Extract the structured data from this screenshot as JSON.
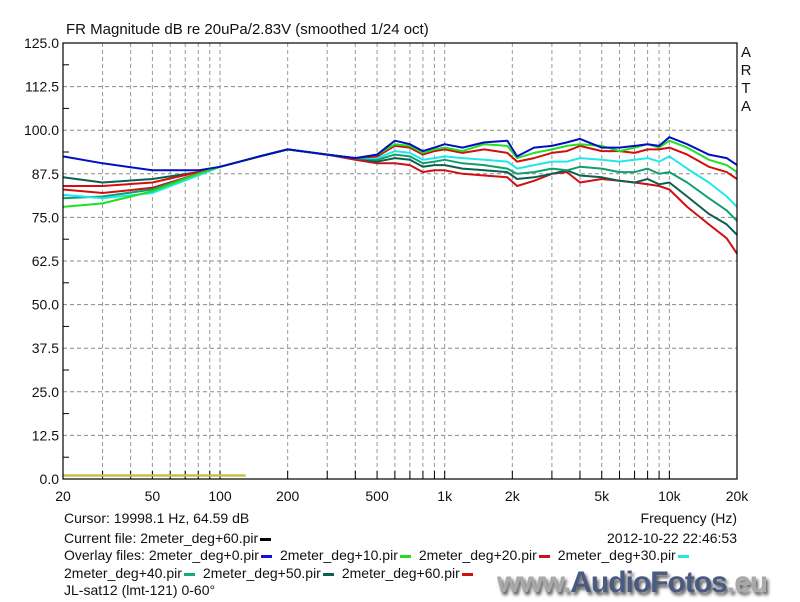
{
  "chart_data": {
    "type": "line",
    "title": "FR Magnitude dB re 20uPa/2.83V (smoothed 1/24 oct)",
    "xlabel": "Frequency (Hz)",
    "ylabel": "",
    "xscale": "log",
    "xlim": [
      20,
      20000
    ],
    "ylim": [
      0,
      125
    ],
    "grid": true,
    "yticks": [
      "0.0",
      "12.5",
      "25.0",
      "37.5",
      "50.0",
      "62.5",
      "75.0",
      "87.5",
      "100.0",
      "112.5",
      "125.0"
    ],
    "xticks": [
      {
        "value": 20,
        "label": "20"
      },
      {
        "value": 50,
        "label": "50"
      },
      {
        "value": 100,
        "label": "100"
      },
      {
        "value": 200,
        "label": "200"
      },
      {
        "value": 500,
        "label": "500"
      },
      {
        "value": 1000,
        "label": "1k"
      },
      {
        "value": 2000,
        "label": "2k"
      },
      {
        "value": 5000,
        "label": "5k"
      },
      {
        "value": 10000,
        "label": "10k"
      },
      {
        "value": 20000,
        "label": "20k"
      }
    ],
    "x": [
      20,
      30,
      50,
      80,
      100,
      150,
      200,
      300,
      400,
      500,
      600,
      700,
      800,
      900,
      1000,
      1200,
      1500,
      1900,
      2100,
      2500,
      3000,
      3500,
      4000,
      5000,
      6000,
      7000,
      8000,
      9000,
      10000,
      12000,
      15000,
      18000,
      20000
    ],
    "series": [
      {
        "name": "2meter_deg+0.pir",
        "color": "#0010c0",
        "values": [
          92.5,
          90.5,
          88.5,
          88.5,
          89.5,
          92.5,
          94.5,
          93,
          92,
          93,
          97,
          96,
          94,
          95,
          96,
          95,
          96.5,
          97,
          92.5,
          95,
          95.5,
          96.5,
          97.5,
          95,
          95,
          95.5,
          96,
          95.5,
          98,
          96,
          93,
          92,
          90
        ]
      },
      {
        "name": "2meter_deg+10.pir",
        "color": "#20e020",
        "values": [
          78,
          79,
          82.5,
          87.5,
          89.5,
          92.5,
          94.5,
          93,
          92,
          93,
          96,
          95.5,
          93.5,
          94.5,
          95,
          94,
          96,
          95.5,
          92,
          93.5,
          94.5,
          95.5,
          96,
          95.5,
          94,
          95,
          96,
          95,
          97,
          95,
          91.5,
          90,
          88
        ]
      },
      {
        "name": "2meter_deg+20.pir",
        "color": "#d01010",
        "values": [
          84,
          84,
          85,
          88,
          89.5,
          92.5,
          94.5,
          93,
          92,
          92.5,
          95.5,
          95,
          93,
          94,
          94.5,
          93.5,
          94.5,
          93.5,
          91,
          92,
          93.5,
          94,
          95.5,
          94,
          94,
          93.5,
          94.5,
          94.5,
          95,
          93,
          89.5,
          88,
          86
        ]
      },
      {
        "name": "2meter_deg+30.pir",
        "color": "#20e8e8",
        "values": [
          81.5,
          80.5,
          82,
          87,
          89.5,
          92.5,
          94.5,
          93,
          92,
          92,
          94,
          93.5,
          91.5,
          92,
          92.5,
          92,
          91.5,
          91,
          89,
          90,
          91,
          91,
          92,
          91.5,
          91,
          91.5,
          92,
          91,
          92.5,
          89,
          85,
          81,
          78
        ]
      },
      {
        "name": "2meter_deg+40.pir",
        "color": "#10a070",
        "values": [
          80.5,
          81,
          83,
          87.5,
          89.5,
          92.5,
          94.5,
          93,
          92,
          91.5,
          93,
          92.5,
          90.5,
          91,
          91.5,
          90.5,
          90,
          89,
          87.5,
          88,
          89,
          88.5,
          89.5,
          89,
          88,
          88,
          89,
          87.5,
          88,
          85,
          80.5,
          77,
          74
        ]
      },
      {
        "name": "2meter_deg+50.pir",
        "color": "#0a6050",
        "values": [
          86.5,
          85,
          86,
          88,
          89.5,
          92.5,
          94.5,
          93,
          92,
          91,
          92,
          91.5,
          89.5,
          90,
          90,
          89,
          88.5,
          88,
          86,
          86.5,
          87.5,
          88.5,
          87,
          86.5,
          85.5,
          85,
          86,
          84.5,
          85,
          81,
          76,
          73,
          70
        ]
      },
      {
        "name": "2meter_deg+60.pir",
        "color": "#d01010",
        "values": [
          83,
          82,
          83.5,
          87.5,
          89.5,
          92.5,
          94.5,
          93,
          91.5,
          90.5,
          90.5,
          90,
          88,
          88.5,
          88.5,
          87.5,
          87,
          86.5,
          84,
          85.5,
          87.5,
          88,
          85,
          86,
          85.5,
          85,
          84.5,
          84,
          83,
          78,
          73,
          69,
          64.6
        ]
      }
    ],
    "reference_line": {
      "color": "#c8c040",
      "from_hz": 20,
      "to_hz": 130,
      "value": 1
    }
  },
  "arta_label": [
    "A",
    "R",
    "T",
    "A"
  ],
  "info": {
    "cursor": "Cursor: 19998.1 Hz, 64.59 dB",
    "current_file_prefix": "Current file: ",
    "current_file": "2meter_deg+60.pir",
    "current_file_color": "#000000",
    "overlay_prefix": "Overlay files: ",
    "overlays_line1": [
      {
        "name": "2meter_deg+0.pir",
        "color": "#1010e0"
      },
      {
        "name": "2meter_deg+10.pir",
        "color": "#20e020"
      },
      {
        "name": "2meter_deg+20.pir",
        "color": "#d01010"
      },
      {
        "name": "2meter_deg+30.pir",
        "color": "#20e8e8"
      }
    ],
    "overlays_line2": [
      {
        "name": "2meter_deg+40.pir",
        "color": "#10b070"
      },
      {
        "name": "2meter_deg+50.pir",
        "color": "#0a6050"
      },
      {
        "name": "2meter_deg+60.pir",
        "color": "#d01010"
      }
    ],
    "note": "JL-sat12 (lmt-121) 0-60°",
    "timestamp": "2012-10-22  22:46:53"
  },
  "watermark": {
    "prefix": "www.",
    "brand1": "Audio",
    "brand2": "Fotos",
    "suffix": ".eu"
  }
}
